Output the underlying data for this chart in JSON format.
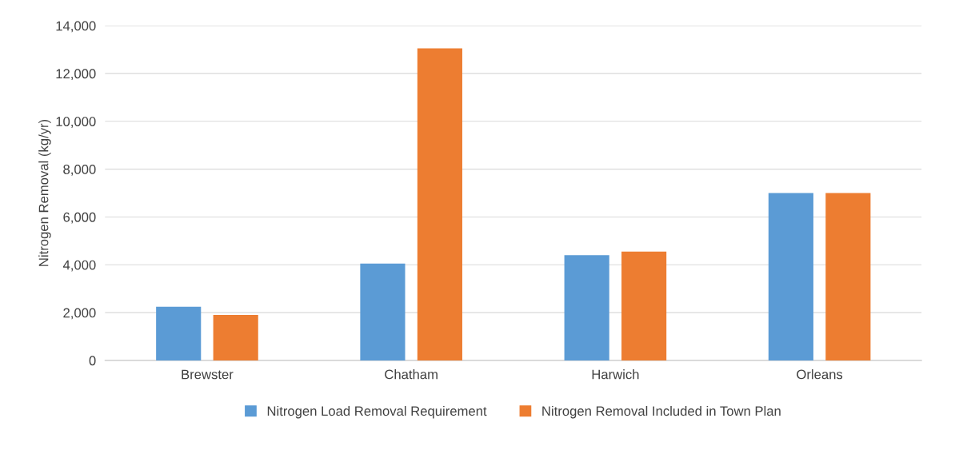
{
  "chart_data": {
    "type": "bar",
    "ylabel": "Nitrogen Removal (kg/yr)",
    "categories": [
      "Brewster",
      "Chatham",
      "Harwich",
      "Orleans"
    ],
    "series": [
      {
        "name": "Nitrogen Load Removal Requirement",
        "color": "#5b9bd5",
        "values": [
          2250,
          4050,
          4400,
          7000
        ]
      },
      {
        "name": "Nitrogen Removal Included in Town Plan",
        "color": "#ed7d31",
        "values": [
          1900,
          13050,
          4550,
          7000
        ]
      }
    ],
    "ylim": [
      0,
      14000
    ],
    "yticks": [
      {
        "value": 0,
        "label": "0"
      },
      {
        "value": 2000,
        "label": "2,000"
      },
      {
        "value": 4000,
        "label": "4,000"
      },
      {
        "value": 6000,
        "label": "6,000"
      },
      {
        "value": 8000,
        "label": "8,000"
      },
      {
        "value": 10000,
        "label": "10,000"
      },
      {
        "value": 12000,
        "label": "12,000"
      },
      {
        "value": 14000,
        "label": "14,000"
      }
    ],
    "grid": "y",
    "legend": "bottom"
  }
}
